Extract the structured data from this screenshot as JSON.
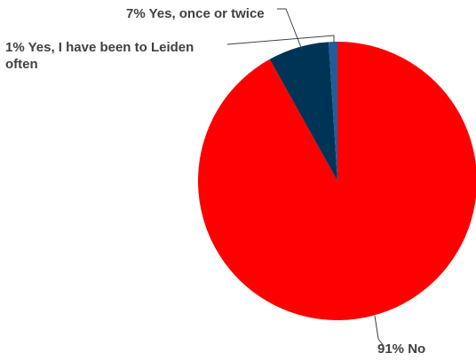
{
  "chart_data": {
    "type": "pie",
    "title": "",
    "slices": [
      {
        "label": "91% No",
        "value": 91,
        "color": "#ff0000"
      },
      {
        "label": "7% Yes, once or twice",
        "value": 7,
        "color": "#003456"
      },
      {
        "label": "1% Yes, I have been to Leiden often",
        "value": 1,
        "color": "#1f5c99"
      }
    ],
    "legend": "none",
    "leader_line_color": "#404040"
  }
}
